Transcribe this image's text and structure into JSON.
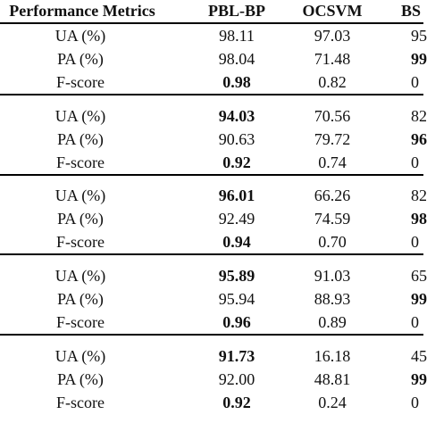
{
  "table": {
    "header": [
      "Performance Metrics",
      "PBL-BP",
      "OCSVM",
      "BS"
    ],
    "rows": [
      [
        "UA (%)",
        "98.11",
        "97.03",
        "95"
      ],
      [
        "PA (%)",
        "98.04",
        "71.48",
        "99"
      ],
      [
        "F-score",
        "0.98",
        "0.82",
        "0"
      ],
      [
        "UA (%)",
        "94.03",
        "70.56",
        "82"
      ],
      [
        "PA (%)",
        "90.63",
        "79.72",
        "96"
      ],
      [
        "F-score",
        "0.92",
        "0.74",
        "0"
      ],
      [
        "UA (%)",
        "96.01",
        "66.26",
        "82"
      ],
      [
        "PA (%)",
        "92.49",
        "74.59",
        "98"
      ],
      [
        "F-score",
        "0.94",
        "0.70",
        "0"
      ],
      [
        "UA (%)",
        "95.89",
        "91.03",
        "65"
      ],
      [
        "PA (%)",
        "95.94",
        "88.93",
        "99"
      ],
      [
        "F-score",
        "0.96",
        "0.89",
        "0"
      ],
      [
        "UA (%)",
        "91.73",
        "16.18",
        "45"
      ],
      [
        "PA (%)",
        "92.00",
        "48.81",
        "99"
      ],
      [
        "F-score",
        "0.92",
        "0.24",
        "0"
      ]
    ],
    "bold_cells": [
      [
        1,
        3
      ],
      [
        2,
        1
      ],
      [
        3,
        1
      ],
      [
        4,
        3
      ],
      [
        5,
        1
      ],
      [
        6,
        1
      ],
      [
        7,
        3
      ],
      [
        8,
        1
      ],
      [
        9,
        1
      ],
      [
        10,
        3
      ],
      [
        11,
        1
      ],
      [
        12,
        1
      ],
      [
        13,
        3
      ],
      [
        14,
        1
      ]
    ]
  }
}
